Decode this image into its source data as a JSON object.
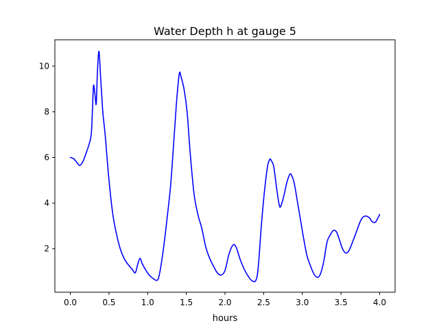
{
  "chart_data": {
    "type": "line",
    "title": "Water Depth h at gauge 5",
    "xlabel": "hours",
    "ylabel": "",
    "xlim": [
      -0.2,
      4.2
    ],
    "ylim": [
      0.1,
      11.15
    ],
    "xticks": [
      0.0,
      0.5,
      1.0,
      1.5,
      2.0,
      2.5,
      3.0,
      3.5,
      4.0
    ],
    "xtick_labels": [
      "0.0",
      "0.5",
      "1.0",
      "1.5",
      "2.0",
      "2.5",
      "3.0",
      "3.5",
      "4.0"
    ],
    "yticks": [
      2,
      4,
      6,
      8,
      10
    ],
    "ytick_labels": [
      "2",
      "4",
      "6",
      "8",
      "10"
    ],
    "grid": false,
    "series": [
      {
        "color": "#0000ff",
        "points": [
          [
            0.0,
            6.0
          ],
          [
            0.04,
            5.95
          ],
          [
            0.08,
            5.8
          ],
          [
            0.12,
            5.65
          ],
          [
            0.16,
            5.8
          ],
          [
            0.2,
            6.15
          ],
          [
            0.24,
            6.55
          ],
          [
            0.27,
            7.0
          ],
          [
            0.285,
            8.0
          ],
          [
            0.3,
            9.15
          ],
          [
            0.32,
            8.7
          ],
          [
            0.335,
            8.35
          ],
          [
            0.35,
            9.7
          ],
          [
            0.37,
            10.65
          ],
          [
            0.39,
            9.6
          ],
          [
            0.42,
            8.0
          ],
          [
            0.45,
            7.0
          ],
          [
            0.5,
            5.0
          ],
          [
            0.55,
            3.5
          ],
          [
            0.6,
            2.6
          ],
          [
            0.65,
            1.95
          ],
          [
            0.7,
            1.55
          ],
          [
            0.75,
            1.3
          ],
          [
            0.8,
            1.1
          ],
          [
            0.84,
            0.95
          ],
          [
            0.87,
            1.3
          ],
          [
            0.9,
            1.58
          ],
          [
            0.93,
            1.35
          ],
          [
            0.97,
            1.1
          ],
          [
            1.02,
            0.85
          ],
          [
            1.07,
            0.7
          ],
          [
            1.12,
            0.62
          ],
          [
            1.15,
            0.85
          ],
          [
            1.2,
            1.9
          ],
          [
            1.25,
            3.3
          ],
          [
            1.3,
            4.9
          ],
          [
            1.35,
            7.3
          ],
          [
            1.38,
            8.7
          ],
          [
            1.41,
            9.68
          ],
          [
            1.43,
            9.55
          ],
          [
            1.47,
            9.0
          ],
          [
            1.51,
            8.0
          ],
          [
            1.55,
            6.2
          ],
          [
            1.6,
            4.4
          ],
          [
            1.65,
            3.5
          ],
          [
            1.7,
            2.9
          ],
          [
            1.75,
            2.1
          ],
          [
            1.8,
            1.6
          ],
          [
            1.85,
            1.25
          ],
          [
            1.9,
            0.95
          ],
          [
            1.95,
            0.85
          ],
          [
            2.0,
            1.05
          ],
          [
            2.05,
            1.75
          ],
          [
            2.1,
            2.15
          ],
          [
            2.14,
            2.1
          ],
          [
            2.2,
            1.5
          ],
          [
            2.25,
            1.1
          ],
          [
            2.3,
            0.8
          ],
          [
            2.35,
            0.6
          ],
          [
            2.4,
            0.62
          ],
          [
            2.43,
            1.2
          ],
          [
            2.47,
            3.0
          ],
          [
            2.51,
            4.5
          ],
          [
            2.55,
            5.6
          ],
          [
            2.58,
            5.92
          ],
          [
            2.6,
            5.85
          ],
          [
            2.63,
            5.6
          ],
          [
            2.67,
            4.6
          ],
          [
            2.7,
            3.95
          ],
          [
            2.72,
            3.85
          ],
          [
            2.76,
            4.3
          ],
          [
            2.8,
            4.9
          ],
          [
            2.84,
            5.27
          ],
          [
            2.87,
            5.15
          ],
          [
            2.9,
            4.8
          ],
          [
            2.94,
            4.0
          ],
          [
            2.98,
            3.2
          ],
          [
            3.02,
            2.4
          ],
          [
            3.06,
            1.7
          ],
          [
            3.1,
            1.3
          ],
          [
            3.15,
            0.9
          ],
          [
            3.2,
            0.75
          ],
          [
            3.24,
            0.95
          ],
          [
            3.28,
            1.5
          ],
          [
            3.32,
            2.3
          ],
          [
            3.36,
            2.6
          ],
          [
            3.4,
            2.8
          ],
          [
            3.44,
            2.75
          ],
          [
            3.48,
            2.4
          ],
          [
            3.52,
            2.0
          ],
          [
            3.56,
            1.82
          ],
          [
            3.6,
            1.9
          ],
          [
            3.65,
            2.3
          ],
          [
            3.7,
            2.75
          ],
          [
            3.75,
            3.2
          ],
          [
            3.79,
            3.4
          ],
          [
            3.83,
            3.43
          ],
          [
            3.87,
            3.35
          ],
          [
            3.9,
            3.2
          ],
          [
            3.94,
            3.15
          ],
          [
            3.97,
            3.3
          ],
          [
            4.0,
            3.5
          ]
        ]
      }
    ]
  }
}
